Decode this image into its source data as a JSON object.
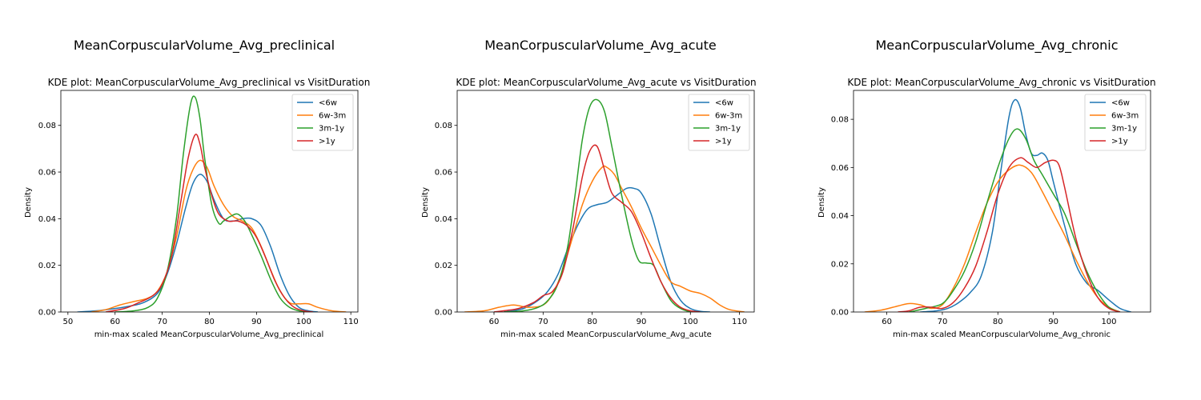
{
  "panels": [
    {
      "suptitle": "MeanCorpuscularVolume_Avg_preclinical"
    },
    {
      "suptitle": "MeanCorpuscularVolume_Avg_acute"
    },
    {
      "suptitle": "MeanCorpuscularVolume_Avg_chronic"
    }
  ],
  "colors": {
    "<6w": "#1f77b4",
    "6w-3m": "#ff7f0e",
    "3m-1y": "#2ca02c",
    ">1y": "#d62728"
  },
  "chart_data": [
    {
      "type": "line",
      "title": "KDE plot:  MeanCorpuscularVolume_Avg_preclinical vs VisitDuration",
      "xlabel": "min-max scaled MeanCorpuscularVolume_Avg_preclinical",
      "ylabel": "Density",
      "xlim": [
        48.5,
        111.5
      ],
      "ylim": [
        0,
        0.095
      ],
      "xticks": [
        50,
        60,
        70,
        80,
        90,
        100,
        110
      ],
      "yticks": [
        0.0,
        0.02,
        0.04,
        0.06,
        0.08
      ],
      "ytick_labels": [
        "0.00",
        "0.02",
        "0.04",
        "0.06",
        "0.08"
      ],
      "legend_position": "upper right",
      "series": [
        {
          "name": "<6w",
          "color": "#1f77b4",
          "x": [
            52,
            56,
            60,
            63,
            66,
            69,
            71,
            73,
            75,
            76.5,
            78,
            79.5,
            81,
            83,
            85,
            87,
            89,
            91,
            93,
            95,
            97,
            99,
            101,
            103
          ],
          "y": [
            0,
            0.0005,
            0.0015,
            0.0025,
            0.004,
            0.008,
            0.016,
            0.029,
            0.045,
            0.055,
            0.059,
            0.056,
            0.048,
            0.04,
            0.039,
            0.04,
            0.04,
            0.037,
            0.028,
            0.016,
            0.007,
            0.002,
            0.0005,
            0
          ]
        },
        {
          "name": "6w-3m",
          "color": "#ff7f0e",
          "x": [
            55,
            58,
            61,
            64,
            67,
            69,
            71,
            73,
            75,
            76.5,
            78,
            79.5,
            81,
            83,
            85,
            87,
            89,
            91,
            93,
            95,
            97,
            99,
            101,
            103,
            106,
            109
          ],
          "y": [
            0,
            0.001,
            0.003,
            0.0045,
            0.006,
            0.009,
            0.017,
            0.032,
            0.052,
            0.061,
            0.065,
            0.062,
            0.054,
            0.046,
            0.041,
            0.039,
            0.036,
            0.028,
            0.018,
            0.009,
            0.004,
            0.0035,
            0.0035,
            0.002,
            0.0005,
            0
          ]
        },
        {
          "name": "3m-1y",
          "color": "#2ca02c",
          "x": [
            60,
            64,
            67,
            69,
            71,
            73,
            74.5,
            76,
            77,
            78,
            79,
            80.5,
            82,
            83,
            84.5,
            86,
            87.5,
            89,
            91,
            93,
            95,
            97,
            99,
            101
          ],
          "y": [
            0,
            0.0005,
            0.002,
            0.006,
            0.017,
            0.04,
            0.068,
            0.089,
            0.092,
            0.083,
            0.066,
            0.046,
            0.038,
            0.039,
            0.041,
            0.042,
            0.039,
            0.033,
            0.024,
            0.014,
            0.006,
            0.002,
            0.0005,
            0
          ]
        },
        {
          "name": ">1y",
          "color": "#d62728",
          "x": [
            58,
            62,
            65,
            68,
            70,
            72,
            74,
            75.5,
            77,
            78,
            79,
            80.5,
            82,
            84,
            86,
            88,
            90,
            92,
            94,
            96,
            98,
            100,
            102
          ],
          "y": [
            0,
            0.0015,
            0.004,
            0.007,
            0.012,
            0.024,
            0.048,
            0.066,
            0.076,
            0.072,
            0.062,
            0.05,
            0.042,
            0.039,
            0.039,
            0.037,
            0.032,
            0.023,
            0.013,
            0.006,
            0.002,
            0.0005,
            0
          ]
        }
      ]
    },
    {
      "type": "line",
      "title": "KDE plot:  MeanCorpuscularVolume_Avg_acute vs VisitDuration",
      "xlabel": "min-max scaled MeanCorpuscularVolume_Avg_acute",
      "ylabel": "Density",
      "xlim": [
        52.5,
        113
      ],
      "ylim": [
        0,
        0.095
      ],
      "xticks": [
        60,
        70,
        80,
        90,
        100,
        110
      ],
      "yticks": [
        0.0,
        0.02,
        0.04,
        0.06,
        0.08
      ],
      "ytick_labels": [
        "0.00",
        "0.02",
        "0.04",
        "0.06",
        "0.08"
      ],
      "legend_position": "upper right",
      "series": [
        {
          "name": "<6w",
          "color": "#1f77b4",
          "x": [
            62,
            66,
            69,
            71,
            73,
            75,
            77,
            79,
            81,
            83,
            85,
            87,
            88.5,
            90,
            92,
            94,
            96,
            98,
            100,
            102,
            104
          ],
          "y": [
            0,
            0.0015,
            0.005,
            0.009,
            0.016,
            0.027,
            0.037,
            0.044,
            0.046,
            0.047,
            0.05,
            0.053,
            0.053,
            0.051,
            0.042,
            0.027,
            0.013,
            0.005,
            0.0015,
            0.0003,
            0
          ]
        },
        {
          "name": "6w-3m",
          "color": "#ff7f0e",
          "x": [
            54,
            58,
            61,
            64,
            67,
            70,
            72,
            74,
            76,
            78,
            80,
            82,
            83,
            84.5,
            86,
            88,
            90,
            92,
            94,
            96,
            98,
            100,
            102,
            104,
            106,
            108,
            111
          ],
          "y": [
            0,
            0.0005,
            0.002,
            0.003,
            0.002,
            0.003,
            0.008,
            0.018,
            0.032,
            0.046,
            0.056,
            0.062,
            0.062,
            0.059,
            0.053,
            0.045,
            0.036,
            0.028,
            0.02,
            0.013,
            0.011,
            0.009,
            0.008,
            0.006,
            0.003,
            0.001,
            0
          ]
        },
        {
          "name": "3m-1y",
          "color": "#2ca02c",
          "x": [
            62,
            66,
            69,
            71,
            73,
            75,
            76.5,
            78,
            79.5,
            81,
            82.5,
            84,
            86,
            88,
            89.5,
            91,
            92.5,
            94,
            96,
            98,
            100
          ],
          "y": [
            0,
            0.0005,
            0.002,
            0.005,
            0.012,
            0.028,
            0.05,
            0.074,
            0.088,
            0.091,
            0.086,
            0.071,
            0.05,
            0.031,
            0.022,
            0.021,
            0.02,
            0.013,
            0.005,
            0.0015,
            0
          ]
        },
        {
          "name": ">1y",
          "color": "#d62728",
          "x": [
            60,
            63,
            65,
            68,
            70,
            72,
            74,
            76,
            78,
            79.5,
            81,
            82.5,
            84,
            86,
            88,
            90,
            92,
            94,
            96,
            98,
            100,
            102
          ],
          "y": [
            0,
            0.0008,
            0.0015,
            0.004,
            0.007,
            0.009,
            0.017,
            0.035,
            0.058,
            0.069,
            0.071,
            0.061,
            0.051,
            0.047,
            0.043,
            0.034,
            0.023,
            0.013,
            0.006,
            0.002,
            0.0005,
            0
          ]
        }
      ]
    },
    {
      "type": "line",
      "title": "KDE plot:  MeanCorpuscularVolume_Avg_chronic vs VisitDuration",
      "xlabel": "min-max scaled MeanCorpuscularVolume_Avg_chronic",
      "ylabel": "Density",
      "xlim": [
        54,
        107.5
      ],
      "ylim": [
        0,
        0.092
      ],
      "xticks": [
        60,
        70,
        80,
        90,
        100
      ],
      "yticks": [
        0.0,
        0.02,
        0.04,
        0.06,
        0.08
      ],
      "ytick_labels": [
        "0.00",
        "0.02",
        "0.04",
        "0.06",
        "0.08"
      ],
      "legend_position": "upper right",
      "series": [
        {
          "name": "<6w",
          "color": "#1f77b4",
          "x": [
            66,
            69,
            71,
            73,
            75,
            77,
            79,
            80.5,
            82,
            83,
            84,
            85,
            86,
            87,
            88,
            89,
            90,
            92,
            94,
            96,
            98,
            100,
            102,
            104
          ],
          "y": [
            0,
            0.0005,
            0.0015,
            0.004,
            0.008,
            0.015,
            0.033,
            0.058,
            0.081,
            0.088,
            0.085,
            0.074,
            0.066,
            0.065,
            0.066,
            0.063,
            0.054,
            0.036,
            0.02,
            0.012,
            0.009,
            0.005,
            0.0015,
            0
          ]
        },
        {
          "name": "6w-3m",
          "color": "#ff7f0e",
          "x": [
            56,
            59,
            62,
            64,
            66,
            68,
            70,
            72,
            74,
            76,
            78,
            80,
            82,
            84,
            86,
            88,
            90,
            92,
            94,
            96,
            98,
            100,
            102
          ],
          "y": [
            0,
            0.0008,
            0.0025,
            0.0035,
            0.003,
            0.0015,
            0.003,
            0.01,
            0.02,
            0.033,
            0.045,
            0.054,
            0.059,
            0.061,
            0.058,
            0.05,
            0.041,
            0.032,
            0.022,
            0.013,
            0.006,
            0.002,
            0
          ]
        },
        {
          "name": "3m-1y",
          "color": "#2ca02c",
          "x": [
            64,
            67,
            70,
            72,
            74,
            76,
            78,
            80,
            82,
            83.5,
            85,
            86.5,
            88,
            90,
            92,
            94,
            96,
            98,
            100,
            102
          ],
          "y": [
            0,
            0.0015,
            0.0035,
            0.009,
            0.017,
            0.029,
            0.045,
            0.06,
            0.072,
            0.076,
            0.072,
            0.063,
            0.057,
            0.049,
            0.041,
            0.029,
            0.017,
            0.008,
            0.002,
            0
          ]
        },
        {
          "name": ">1y",
          "color": "#d62728",
          "x": [
            62,
            64,
            66,
            68,
            70,
            72,
            74,
            76,
            78,
            80,
            82,
            84,
            85.5,
            87,
            88.5,
            90,
            91,
            92,
            94,
            96,
            98,
            100,
            102
          ],
          "y": [
            0,
            0.0005,
            0.002,
            0.002,
            0.0015,
            0.004,
            0.01,
            0.019,
            0.033,
            0.049,
            0.06,
            0.064,
            0.062,
            0.06,
            0.062,
            0.063,
            0.061,
            0.052,
            0.031,
            0.016,
            0.006,
            0.0015,
            0
          ]
        }
      ]
    }
  ]
}
